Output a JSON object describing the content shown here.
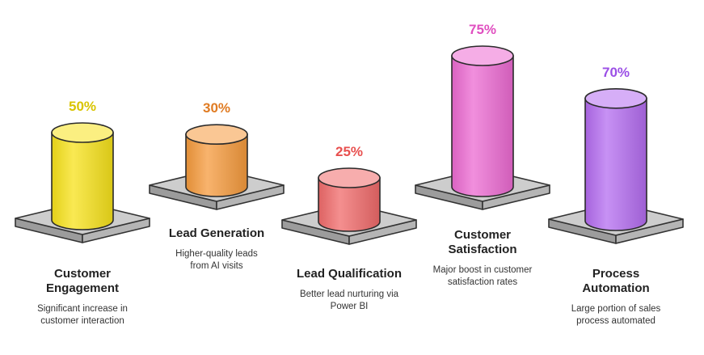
{
  "chart_data": {
    "type": "bar",
    "categories": [
      "Customer Engagement",
      "Lead Generation",
      "Lead Qualification",
      "Customer Satisfaction",
      "Process Automation"
    ],
    "values": [
      50,
      30,
      25,
      75,
      70
    ],
    "value_labels": [
      "50%",
      "30%",
      "25%",
      "75%",
      "70%"
    ],
    "label_lines": [
      [
        "Customer",
        "Engagement"
      ],
      [
        "Lead Generation"
      ],
      [
        "Lead Qualification"
      ],
      [
        "Customer",
        "Satisfaction"
      ],
      [
        "Process",
        "Automation"
      ]
    ],
    "descriptions": [
      [
        "Significant increase in",
        "customer interaction"
      ],
      [
        "Higher-quality leads",
        "from AI visits"
      ],
      [
        "Better lead nurturing via",
        "Power BI"
      ],
      [
        "Major boost in customer",
        "satisfaction rates"
      ],
      [
        "Large portion of sales",
        "process automated"
      ]
    ],
    "colors": [
      "#f7e21a",
      "#f59a3c",
      "#f06a6a",
      "#ec6ad2",
      "#b46cf0"
    ],
    "label_colors": [
      "#d9c400",
      "#e07b22",
      "#e8504f",
      "#e04fc0",
      "#9b4fe6"
    ],
    "ylim": [
      0,
      100
    ],
    "grid": false
  }
}
